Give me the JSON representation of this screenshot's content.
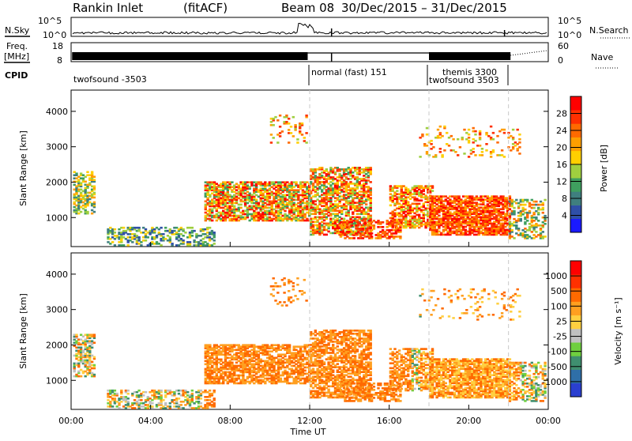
{
  "header": {
    "station": "Rankin Inlet",
    "mode": "(fitACF)",
    "beam": "Beam 08",
    "date_range": "30/Dec/2015 – 31/Dec/2015"
  },
  "side_labels": {
    "nsky": "N.Sky",
    "freq_line1": "Freq.",
    "freq_line2": "[MHz]",
    "cpid": "CPID",
    "nsearch": "N.Search",
    "nave": "Nave"
  },
  "chart_data": [
    {
      "type": "line",
      "name": "noise-panel",
      "series": [
        {
          "name": "N.Sky"
        },
        {
          "name": "N.Search"
        }
      ],
      "left_ticks": [
        "10^5",
        "10^0"
      ],
      "right_ticks": [
        "10^5",
        "10^0"
      ],
      "x_range_hours": [
        0,
        24
      ]
    },
    {
      "type": "line",
      "name": "frequency-panel",
      "series": [
        {
          "name": "Freq. [MHz]"
        },
        {
          "name": "Nave"
        }
      ],
      "left_ticks": [
        "18",
        "8"
      ],
      "right_ticks": [
        "60",
        "0"
      ],
      "x_range_hours": [
        0,
        24
      ]
    },
    {
      "type": "table",
      "name": "cpid-panel",
      "segments": [
        {
          "label": "twofsound -3503",
          "start_hour": 0
        },
        {
          "label": "normal (fast) 151",
          "start_hour": 12
        },
        {
          "label": "themis 3300",
          "start_hour": 18
        },
        {
          "label": "twofsound 3503",
          "start_hour": 18
        }
      ]
    },
    {
      "type": "heatmap",
      "name": "power-panel",
      "ylabel": "Slant Range [km]",
      "yticks": [
        1000,
        2000,
        3000,
        4000
      ],
      "ylim": [
        180,
        4600
      ],
      "xlim_hours": [
        0,
        24
      ],
      "colorbar": {
        "label": "Power [dB]",
        "ticks": [
          "4",
          "8",
          "12",
          "16",
          "20",
          "24",
          "28"
        ],
        "colors": [
          "#1a1aff",
          "#2f4fa8",
          "#3f7f7f",
          "#3f9f5f",
          "#9fcf3f",
          "#ffcf00",
          "#ff9f00",
          "#ff6a00",
          "#ff3000",
          "#ff0000"
        ]
      }
    },
    {
      "type": "heatmap",
      "name": "velocity-panel",
      "ylabel": "Slant Range [km]",
      "xlabel": "Time UT",
      "yticks": [
        1000,
        2000,
        3000,
        4000
      ],
      "ylim": [
        180,
        4600
      ],
      "xlim_hours": [
        0,
        24
      ],
      "xticks": [
        "00:00",
        "04:00",
        "08:00",
        "12:00",
        "16:00",
        "20:00",
        "00:00"
      ],
      "colorbar": {
        "label": "Velocity [m s⁻¹]",
        "ticks": [
          "1000",
          "500",
          "100",
          "25",
          "-25",
          "-100",
          "-500",
          "-1000"
        ],
        "colors": [
          "#2a3fd0",
          "#2f6fa8",
          "#3f8f6f",
          "#6fcf3f",
          "#c0c0c0",
          "#ffcf40",
          "#ff9f20",
          "#ff6a00",
          "#ff3000",
          "#ff0000"
        ]
      }
    }
  ]
}
